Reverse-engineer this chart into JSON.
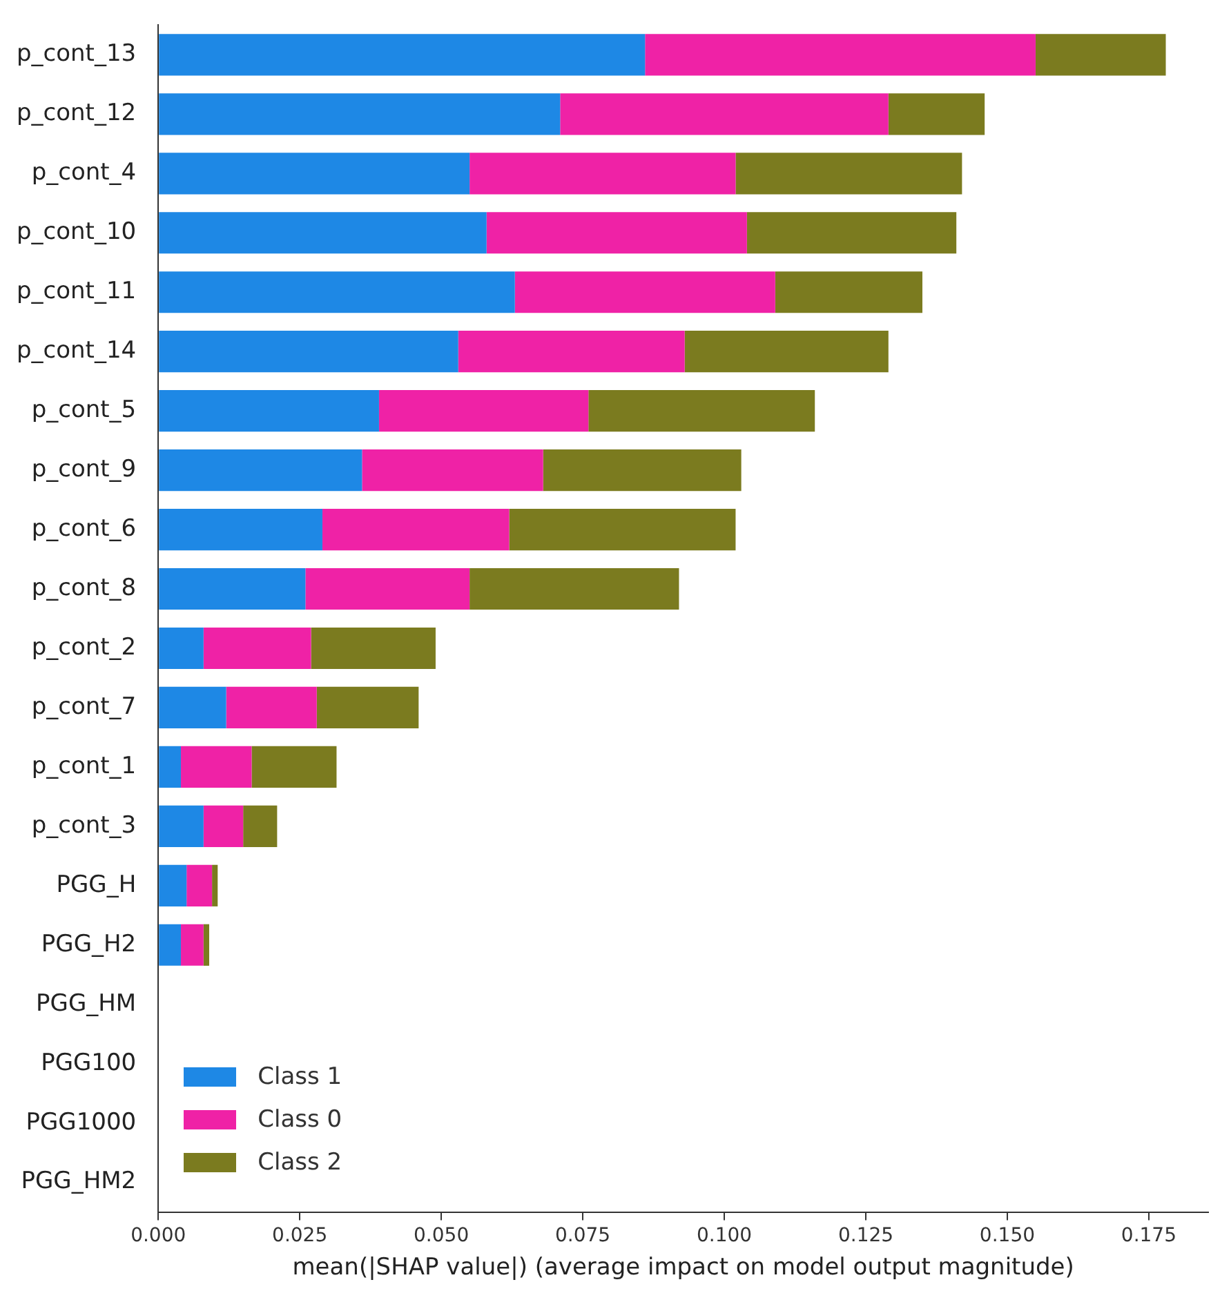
{
  "chart_data": {
    "type": "bar",
    "orientation": "horizontal",
    "stacked": true,
    "xlabel": "mean(|SHAP value|) (average impact on model output magnitude)",
    "categories": [
      "p_cont_13",
      "p_cont_12",
      "p_cont_4",
      "p_cont_10",
      "p_cont_11",
      "p_cont_14",
      "p_cont_5",
      "p_cont_9",
      "p_cont_6",
      "p_cont_8",
      "p_cont_2",
      "p_cont_7",
      "p_cont_1",
      "p_cont_3",
      "PGG_H",
      "PGG_H2",
      "PGG_HM",
      "PGG100",
      "PGG1000",
      "PGG_HM2"
    ],
    "series": [
      {
        "name": "Class 1",
        "color": "#1e88e5",
        "values": [
          0.086,
          0.071,
          0.055,
          0.058,
          0.063,
          0.053,
          0.039,
          0.036,
          0.029,
          0.026,
          0.008,
          0.012,
          0.004,
          0.008,
          0.005,
          0.004,
          0,
          0,
          0,
          0
        ]
      },
      {
        "name": "Class 0",
        "color": "#ef22a6",
        "values": [
          0.069,
          0.058,
          0.047,
          0.046,
          0.046,
          0.04,
          0.037,
          0.032,
          0.033,
          0.029,
          0.019,
          0.016,
          0.0125,
          0.007,
          0.0045,
          0.004,
          0,
          0,
          0,
          0
        ]
      },
      {
        "name": "Class 2",
        "color": "#7b7b1f",
        "values": [
          0.023,
          0.017,
          0.04,
          0.037,
          0.026,
          0.036,
          0.04,
          0.035,
          0.04,
          0.037,
          0.022,
          0.018,
          0.015,
          0.006,
          0.001,
          0.001,
          0,
          0,
          0,
          0
        ]
      }
    ],
    "xlim": [
      0,
      0.1855
    ],
    "xticks": [
      {
        "value": 0,
        "label": "0.000"
      },
      {
        "value": 0.025,
        "label": "0.025"
      },
      {
        "value": 0.05,
        "label": "0.050"
      },
      {
        "value": 0.075,
        "label": "0.075"
      },
      {
        "value": 0.1,
        "label": "0.100"
      },
      {
        "value": 0.125,
        "label": "0.125"
      },
      {
        "value": 0.15,
        "label": "0.150"
      },
      {
        "value": 0.175,
        "label": "0.175"
      }
    ],
    "grid": false,
    "legend": "bottom left"
  }
}
